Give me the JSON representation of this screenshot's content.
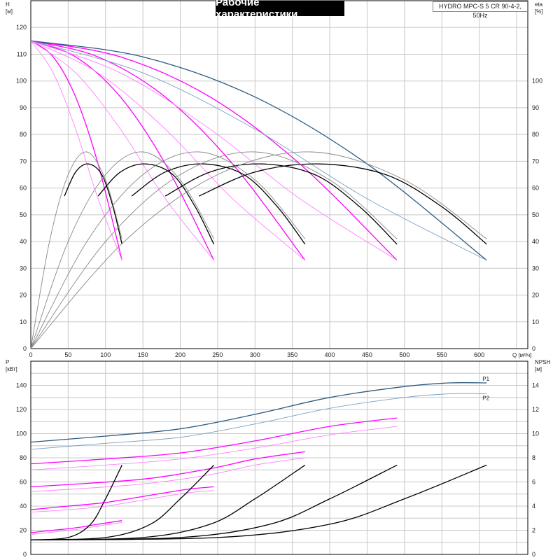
{
  "chart_data": [
    {
      "type": "line",
      "title": "Рабочие характеристики",
      "subtitle": "HYDRO MPC-S 5 CR 90-4-2, 50Hz",
      "ylabel_left": "H",
      "yunit_left": "[м]",
      "ylabel_right": "eta",
      "yunit_right": "[%]",
      "xlabel": "Q [м³/ч]",
      "xlim": [
        0,
        665
      ],
      "ylim": [
        0,
        130
      ],
      "x_ticks": [
        0,
        50,
        100,
        150,
        200,
        250,
        300,
        350,
        400,
        450,
        500,
        550,
        600
      ],
      "y_ticks_left": [
        0,
        10,
        20,
        30,
        40,
        50,
        60,
        70,
        80,
        90,
        100,
        110,
        120
      ],
      "y_ticks_right": [
        0,
        10,
        20,
        30,
        40,
        50,
        60,
        70,
        80,
        90,
        100
      ],
      "grid": true,
      "series": [
        {
          "color": "#ff00ff",
          "x": [
            0,
            30,
            60,
            90,
            122
          ],
          "values": [
            115,
            109,
            94,
            69,
            33
          ]
        },
        {
          "color": "#ff00ff",
          "x": [
            0,
            60,
            120,
            180,
            245
          ],
          "values": [
            115,
            109,
            94,
            69,
            33
          ]
        },
        {
          "color": "#ff00ff",
          "x": [
            0,
            90,
            180,
            270,
            367
          ],
          "values": [
            115,
            109,
            94,
            69,
            33
          ]
        },
        {
          "color": "#ff00ff",
          "x": [
            0,
            120,
            240,
            360,
            490
          ],
          "values": [
            115,
            109,
            94,
            69,
            33
          ]
        },
        {
          "color": "#2a5a80",
          "x": [
            0,
            150,
            300,
            450,
            610
          ],
          "values": [
            115,
            109,
            94,
            69,
            33
          ]
        },
        {
          "color": "#ff80ff",
          "x": [
            0,
            30,
            60,
            90,
            122
          ],
          "values": [
            115,
            103,
            82,
            56,
            33
          ]
        },
        {
          "color": "#ff80ff",
          "x": [
            0,
            60,
            120,
            180,
            245
          ],
          "values": [
            115,
            103,
            82,
            56,
            33
          ]
        },
        {
          "color": "#ff80ff",
          "x": [
            0,
            90,
            180,
            270,
            367
          ],
          "values": [
            115,
            103,
            82,
            56,
            33
          ]
        },
        {
          "color": "#ff80ff",
          "x": [
            0,
            120,
            240,
            360,
            490
          ],
          "values": [
            115,
            103,
            82,
            56,
            33
          ]
        },
        {
          "color": "#7aa0c0",
          "x": [
            0,
            150,
            300,
            450,
            610
          ],
          "values": [
            115,
            103,
            82,
            56,
            33
          ]
        },
        {
          "color": "#000000",
          "x": [
            45,
            60,
            77,
            95,
            110,
            122
          ],
          "values": [
            57,
            66,
            69,
            65,
            53,
            39
          ]
        },
        {
          "color": "#000000",
          "x": [
            90,
            120,
            154,
            190,
            220,
            245
          ],
          "values": [
            57,
            66,
            69,
            65,
            53,
            39
          ]
        },
        {
          "color": "#000000",
          "x": [
            135,
            180,
            231,
            285,
            330,
            367
          ],
          "values": [
            57,
            66,
            69,
            65,
            53,
            39
          ]
        },
        {
          "color": "#000000",
          "x": [
            180,
            240,
            308,
            380,
            440,
            490
          ],
          "values": [
            57,
            66,
            69,
            65,
            53,
            39
          ]
        },
        {
          "color": "#000000",
          "x": [
            225,
            300,
            385,
            475,
            550,
            610
          ],
          "values": [
            57,
            66,
            69,
            65,
            53,
            39
          ]
        },
        {
          "color": "#888888",
          "x": [
            0,
            25,
            50,
            75,
            100,
            122
          ],
          "values": [
            0,
            40,
            65,
            73.5,
            63,
            41
          ]
        },
        {
          "color": "#888888",
          "x": [
            0,
            50,
            100,
            150,
            200,
            245
          ],
          "values": [
            0,
            40,
            65,
            73.5,
            63,
            41
          ]
        },
        {
          "color": "#888888",
          "x": [
            0,
            75,
            150,
            225,
            300,
            367
          ],
          "values": [
            0,
            40,
            65,
            73.5,
            63,
            41
          ]
        },
        {
          "color": "#888888",
          "x": [
            0,
            100,
            200,
            300,
            400,
            490
          ],
          "values": [
            0,
            40,
            65,
            73.5,
            63,
            41
          ]
        },
        {
          "color": "#888888",
          "x": [
            0,
            125,
            250,
            375,
            500,
            610
          ],
          "values": [
            0,
            40,
            65,
            73.5,
            63,
            41
          ]
        }
      ]
    },
    {
      "type": "line",
      "ylabel_left": "P",
      "yunit_left": "[кВт]",
      "ylabel_right": "NPSH",
      "yunit_right": "[м]",
      "xlim": [
        0,
        665
      ],
      "ylim": [
        0,
        160
      ],
      "y_ticks_left": [
        0,
        20,
        40,
        60,
        80,
        100,
        120,
        140
      ],
      "y_ticks_right": [
        0,
        2,
        4,
        6,
        8,
        10,
        12,
        14
      ],
      "grid": true,
      "legend": [
        "P1",
        "P2"
      ],
      "series": [
        {
          "name": "P1",
          "color": "#2a5a80",
          "x": [
            0,
            100,
            200,
            300,
            400,
            500,
            560,
            610
          ],
          "values": [
            93,
            98,
            104,
            116,
            130,
            139,
            142,
            142
          ]
        },
        {
          "name": "P2",
          "color": "#7aa0c0",
          "x": [
            0,
            100,
            200,
            300,
            400,
            500,
            560,
            610
          ],
          "values": [
            87,
            92,
            97,
            108,
            121,
            130,
            133,
            133
          ]
        },
        {
          "color": "#ff00ff",
          "x": [
            0,
            100,
            200,
            300,
            400,
            490
          ],
          "values": [
            75,
            79,
            84,
            94,
            106,
            113
          ]
        },
        {
          "color": "#ff80ff",
          "x": [
            0,
            100,
            200,
            300,
            400,
            490
          ],
          "values": [
            70,
            74,
            79,
            88,
            99,
            106
          ]
        },
        {
          "color": "#ff00ff",
          "x": [
            0,
            80,
            160,
            240,
            300,
            367
          ],
          "values": [
            56,
            59,
            63,
            71,
            79,
            85
          ]
        },
        {
          "color": "#ff80ff",
          "x": [
            0,
            80,
            160,
            240,
            300,
            367
          ],
          "values": [
            52,
            55,
            59,
            66,
            74,
            80
          ]
        },
        {
          "color": "#ff00ff",
          "x": [
            0,
            50,
            100,
            160,
            210,
            245
          ],
          "values": [
            37,
            40,
            43,
            49,
            54,
            56
          ]
        },
        {
          "color": "#ff80ff",
          "x": [
            0,
            50,
            100,
            160,
            210,
            245
          ],
          "values": [
            35,
            37,
            40,
            46,
            51,
            53
          ]
        },
        {
          "color": "#ff00ff",
          "x": [
            0,
            30,
            60,
            90,
            122
          ],
          "values": [
            18,
            20,
            22,
            25,
            28
          ]
        },
        {
          "color": "#ff80ff",
          "x": [
            0,
            30,
            60,
            90,
            122
          ],
          "values": [
            16.5,
            18.5,
            20.5,
            23.5,
            26.5
          ]
        },
        {
          "color": "#000000",
          "x": [
            0,
            50,
            80,
            100,
            122
          ],
          "values": [
            1.2,
            1.4,
            2.5,
            4.6,
            7.4
          ],
          "axis": "right"
        },
        {
          "color": "#000000",
          "x": [
            0,
            100,
            160,
            200,
            245
          ],
          "values": [
            1.2,
            1.4,
            2.5,
            4.6,
            7.4
          ],
          "axis": "right"
        },
        {
          "color": "#000000",
          "x": [
            0,
            150,
            240,
            300,
            367
          ],
          "values": [
            1.2,
            1.4,
            2.5,
            4.6,
            7.4
          ],
          "axis": "right"
        },
        {
          "color": "#000000",
          "x": [
            0,
            200,
            320,
            400,
            490
          ],
          "values": [
            1.2,
            1.4,
            2.5,
            4.6,
            7.4
          ],
          "axis": "right"
        },
        {
          "color": "#000000",
          "x": [
            0,
            250,
            400,
            500,
            610
          ],
          "values": [
            1.2,
            1.4,
            2.5,
            4.6,
            7.4
          ],
          "axis": "right"
        }
      ]
    }
  ]
}
